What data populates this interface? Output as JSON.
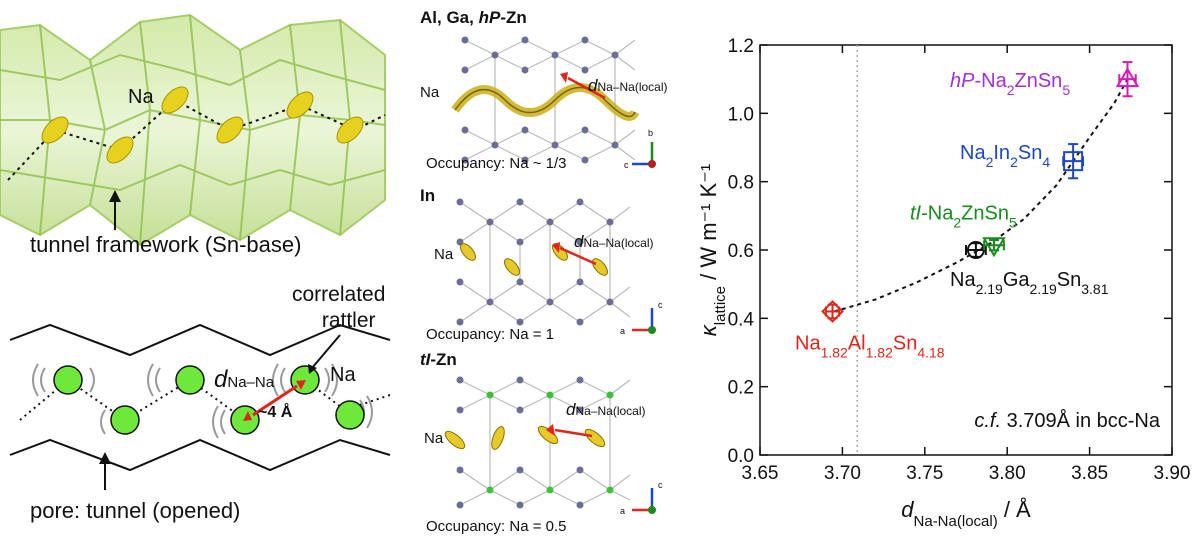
{
  "panel_tunnel": {
    "na_label": "Na",
    "framework_label": "tunnel framework (Sn-base)"
  },
  "panel_rattler": {
    "correlated_label_line1": "correlated",
    "correlated_label_line2": "rattler",
    "d_label_main": "d",
    "d_label_sub": "Na–Na",
    "distance_label": "~4 Å",
    "na_label": "Na",
    "pore_label": "pore: tunnel (opened)"
  },
  "structures": [
    {
      "title_prefix": "Al, Ga, ",
      "title_italic": "hP",
      "title_suffix": "-Zn",
      "na_label": "Na",
      "d_main": "d",
      "d_sub": "Na–Na(local)",
      "occupancy": "Occupancy: Na ~ 1/3",
      "axes": [
        "b",
        "c"
      ]
    },
    {
      "title_prefix": "In",
      "title_italic": "",
      "title_suffix": "",
      "na_label": "Na",
      "d_main": "d",
      "d_sub": "Na–Na(local)",
      "occupancy": "Occupancy: Na = 1",
      "axes": [
        "c",
        "a"
      ]
    },
    {
      "title_prefix": "",
      "title_italic": "tI",
      "title_suffix": "-Zn",
      "na_label": "Na",
      "d_main": "d",
      "d_sub": "Na–Na(local)",
      "occupancy": "Occupancy: Na = 0.5",
      "axes": [
        "c",
        "a"
      ]
    }
  ],
  "chart_data": {
    "type": "scatter",
    "xlabel_main": "d",
    "xlabel_sub": "Na-Na(local)",
    "xlabel_unit": " / Å",
    "ylabel_main": "κ",
    "ylabel_sub": "lattice",
    "ylabel_unit": " / W m⁻¹ K⁻¹",
    "xlim": [
      3.65,
      3.9
    ],
    "ylim": [
      0.0,
      1.2
    ],
    "xticks": [
      "3.65",
      "3.70",
      "3.75",
      "3.80",
      "3.85",
      "3.90"
    ],
    "yticks": [
      "0.0",
      "0.2",
      "0.4",
      "0.6",
      "0.8",
      "1.0",
      "1.2"
    ],
    "reference_x": 3.709,
    "annotation_prefix": "c.f.",
    "annotation_text": " 3.709Å in bcc-Na",
    "fit_curve": [
      [
        3.695,
        0.42
      ],
      [
        3.72,
        0.455
      ],
      [
        3.745,
        0.505
      ],
      [
        3.77,
        0.565
      ],
      [
        3.79,
        0.62
      ],
      [
        3.81,
        0.69
      ],
      [
        3.83,
        0.79
      ],
      [
        3.85,
        0.93
      ],
      [
        3.865,
        1.03
      ],
      [
        3.873,
        1.1
      ]
    ],
    "series": [
      {
        "name": "Na1.82Al1.82Sn4.18",
        "x": 3.694,
        "y": 0.42,
        "xerr": 0.004,
        "yerr": 0.02,
        "marker": "diamond",
        "color": "#e0261b"
      },
      {
        "name": "Na2.19Ga2.19Sn3.81",
        "x": 3.781,
        "y": 0.6,
        "xerr": 0.006,
        "yerr": 0.02,
        "marker": "circle",
        "color": "#111111"
      },
      {
        "name": "tI-Na2ZnSn5",
        "x": 3.792,
        "y": 0.614,
        "xerr": 0.006,
        "yerr": 0.015,
        "marker": "triangle-down",
        "color": "#1a8a1e"
      },
      {
        "name": "Na2In2Sn4",
        "x": 3.84,
        "y": 0.86,
        "xerr": 0.006,
        "yerr": 0.05,
        "marker": "square",
        "color": "#1c47c7"
      },
      {
        "name": "hP-Na2ZnSn5",
        "x": 3.873,
        "y": 1.1,
        "xerr": 0.005,
        "yerr": 0.05,
        "marker": "triangle-up",
        "color": "#d21cb4"
      }
    ],
    "series_labels": [
      {
        "parts": [
          [
            "",
            "hP"
          ],
          [
            "-Na",
            ""
          ],
          [
            "2",
            "sub"
          ],
          [
            "ZnSn",
            ""
          ],
          [
            "5",
            "sub"
          ]
        ],
        "color": "#a330d6"
      },
      {
        "parts": [
          [
            "Na",
            ""
          ],
          [
            "2",
            "sub"
          ],
          [
            "In",
            ""
          ],
          [
            "2",
            "sub"
          ],
          [
            "Sn",
            ""
          ],
          [
            "4",
            "sub"
          ]
        ],
        "color": "#1c47c7"
      },
      {
        "parts": [
          [
            "",
            "tI"
          ],
          [
            "-Na",
            ""
          ],
          [
            "2",
            "sub"
          ],
          [
            "ZnSn",
            ""
          ],
          [
            "5",
            "sub"
          ]
        ],
        "color": "#1a8a1e"
      },
      {
        "parts": [
          [
            "Na",
            ""
          ],
          [
            "2.19",
            "sub"
          ],
          [
            "Ga",
            ""
          ],
          [
            "2.19",
            "sub"
          ],
          [
            "Sn",
            ""
          ],
          [
            "3.81",
            "sub"
          ]
        ],
        "color": "#111111"
      },
      {
        "parts": [
          [
            "Na",
            ""
          ],
          [
            "1.82",
            "sub"
          ],
          [
            "Al",
            ""
          ],
          [
            "1.82",
            "sub"
          ],
          [
            "Sn",
            ""
          ],
          [
            "4.18",
            "sub"
          ]
        ],
        "color": "#e0261b"
      }
    ]
  }
}
